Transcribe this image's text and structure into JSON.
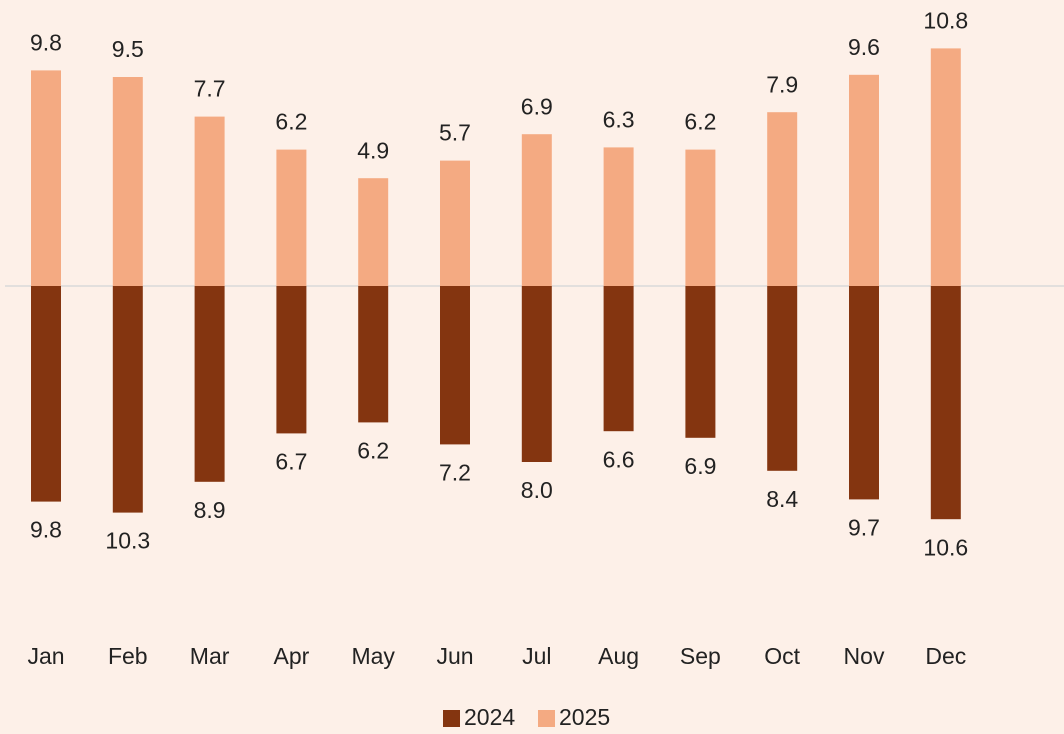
{
  "chart_data": {
    "type": "diverging_bar",
    "categories": [
      "Jan",
      "Feb",
      "Mar",
      "Apr",
      "May",
      "Jun",
      "Jul",
      "Aug",
      "Sep",
      "Oct",
      "Nov",
      "Dec"
    ],
    "series": [
      {
        "name": "2024",
        "color": "#843510",
        "values": [
          9.8,
          10.3,
          8.9,
          6.7,
          6.2,
          7.2,
          8.0,
          6.6,
          6.9,
          8.4,
          9.7,
          10.6
        ],
        "value_labels": [
          "9.8",
          "10.3",
          "8.9",
          "6.7",
          "6.2",
          "7.2",
          "8.0",
          "6.6",
          "6.9",
          "8.4",
          "9.7",
          "10.6"
        ]
      },
      {
        "name": "2025",
        "color": "#f4aa82",
        "values": [
          9.8,
          9.5,
          7.7,
          6.2,
          4.9,
          5.7,
          6.9,
          6.3,
          6.2,
          7.9,
          9.6,
          10.8
        ]
      }
    ],
    "legend": "bottom"
  }
}
